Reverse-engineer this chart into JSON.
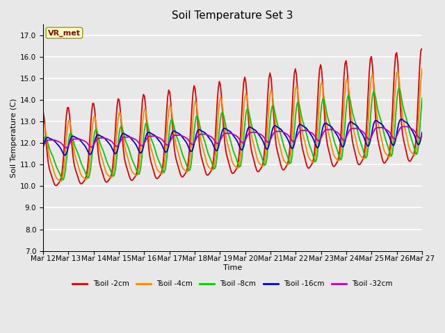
{
  "title": "Soil Temperature Set 3",
  "xlabel": "Time",
  "ylabel": "Soil Temperature (C)",
  "ylim": [
    7.0,
    17.5
  ],
  "yticks": [
    7.0,
    8.0,
    9.0,
    10.0,
    11.0,
    12.0,
    13.0,
    14.0,
    15.0,
    16.0,
    17.0
  ],
  "xtick_labels": [
    "Mar 12",
    "Mar 13",
    "Mar 14",
    "Mar 15",
    "Mar 16",
    "Mar 17",
    "Mar 18",
    "Mar 19",
    "Mar 20",
    "Mar 21",
    "Mar 22",
    "Mar 23",
    "Mar 24",
    "Mar 25",
    "Mar 26",
    "Mar 27"
  ],
  "series": [
    {
      "label": "Tsoil -2cm",
      "color": "#dd0000",
      "lw": 1.3
    },
    {
      "label": "Tsoil -4cm",
      "color": "#ff8800",
      "lw": 1.3
    },
    {
      "label": "Tsoil -8cm",
      "color": "#00cc00",
      "lw": 1.3
    },
    {
      "label": "Tsoil -16cm",
      "color": "#0000cc",
      "lw": 1.3
    },
    {
      "label": "Tsoil -32cm",
      "color": "#bb00bb",
      "lw": 1.3
    }
  ],
  "annotation_text": "VR_met",
  "plot_bg_color": "#e8e8e8",
  "fig_bg_color": "#e8e8e8",
  "title_fontsize": 11,
  "label_fontsize": 8,
  "tick_fontsize": 7.5
}
